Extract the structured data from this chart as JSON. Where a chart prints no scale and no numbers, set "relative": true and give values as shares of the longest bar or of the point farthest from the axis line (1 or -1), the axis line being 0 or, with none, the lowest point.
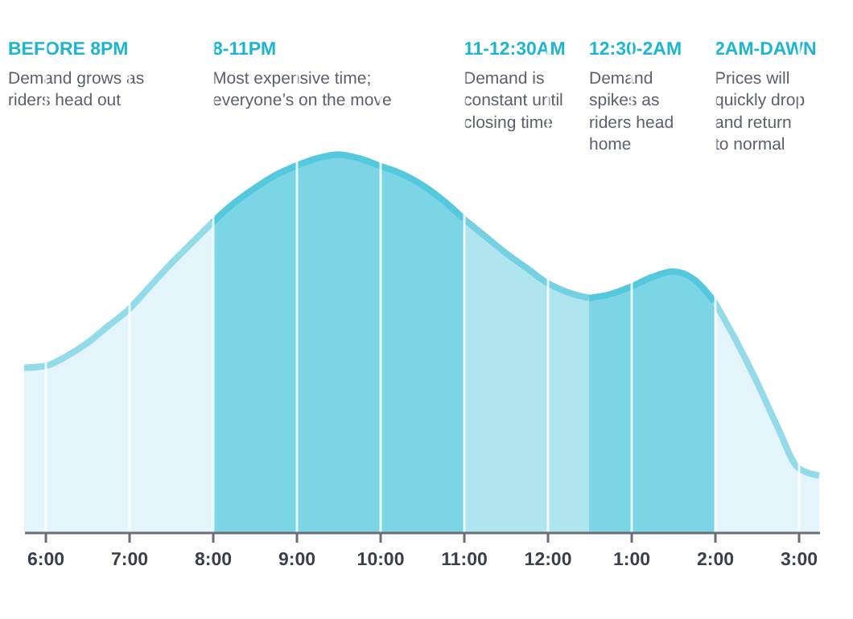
{
  "chart_data": {
    "type": "area",
    "relative": true,
    "grid": "x",
    "categories": [
      null,
      "6:00",
      null,
      null,
      null,
      "7:00",
      null,
      null,
      null,
      "8:00",
      null,
      null,
      null,
      "9:00",
      null,
      null,
      null,
      "10:00",
      null,
      null,
      null,
      "11:00",
      null,
      null,
      null,
      "12:00",
      null,
      null,
      null,
      "1:00",
      null,
      null,
      null,
      "2:00",
      null,
      null,
      null,
      "3:00",
      null
    ],
    "series": [
      {
        "color": "#e3f5fa",
        "values": [
          0.435,
          0.44,
          0.465,
          0.5,
          0.545,
          0.59,
          0.65,
          0.71,
          0.765,
          0.82,
          null,
          null,
          null,
          null,
          null,
          null,
          null,
          null,
          null,
          null,
          null,
          null,
          null,
          null,
          null,
          null,
          null,
          null,
          null,
          null,
          null,
          null,
          null,
          null,
          null,
          null,
          null,
          null,
          null
        ]
      },
      {
        "color": "#7bd5e5",
        "values": [
          null,
          null,
          null,
          null,
          null,
          null,
          null,
          null,
          null,
          0.82,
          0.87,
          0.91,
          0.945,
          0.97,
          0.99,
          1,
          0.99,
          0.97,
          0.95,
          0.92,
          0.88,
          0.83,
          null,
          null,
          null,
          null,
          null,
          null,
          null,
          null,
          null,
          null,
          null,
          null,
          null,
          null,
          null,
          null,
          null
        ]
      },
      {
        "color": "#aee5ee",
        "values": [
          null,
          null,
          null,
          null,
          null,
          null,
          null,
          null,
          null,
          null,
          null,
          null,
          null,
          null,
          null,
          null,
          null,
          null,
          null,
          null,
          null,
          0.83,
          0.785,
          0.74,
          0.7,
          0.66,
          0.635,
          0.62,
          null,
          null,
          null,
          null,
          null,
          null,
          null,
          null,
          null,
          null,
          null
        ]
      },
      {
        "color": "#7bd5e5",
        "values": [
          null,
          null,
          null,
          null,
          null,
          null,
          null,
          null,
          null,
          null,
          null,
          null,
          null,
          null,
          null,
          null,
          null,
          null,
          null,
          null,
          null,
          null,
          null,
          null,
          null,
          null,
          null,
          0.62,
          0.63,
          0.65,
          0.675,
          0.69,
          0.67,
          0.61,
          null,
          null,
          null,
          null,
          null
        ]
      },
      {
        "color": "#e3f5fa",
        "values": [
          null,
          null,
          null,
          null,
          null,
          null,
          null,
          null,
          null,
          null,
          null,
          null,
          null,
          null,
          null,
          null,
          null,
          null,
          null,
          null,
          null,
          null,
          null,
          null,
          null,
          null,
          null,
          null,
          null,
          null,
          null,
          null,
          null,
          0.61,
          0.51,
          0.4,
          0.28,
          0.17,
          0.15
        ]
      }
    ],
    "annotations": [
      "BEFORE 8PM",
      "Demand grows as\nriders head out",
      "8-11PM",
      "Most expensive time;\neveryone’s on the move",
      "11-12:30AM",
      "Demand is\nconstant until\nclosing time",
      "12:30-2AM",
      "Demand\nspikes as\nriders head\nhome",
      "2AM-DAWN",
      "Prices will\nquickly drop\nand return\nto normal"
    ]
  }
}
